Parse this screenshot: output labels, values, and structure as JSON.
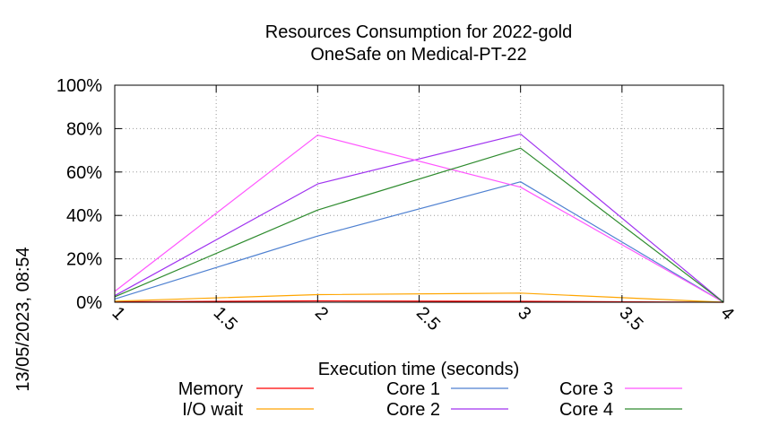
{
  "chart_data": {
    "type": "line",
    "title": "Resources Consumption for 2022-gold",
    "subtitle": "OneSafe on Medical-PT-22",
    "xlabel": "Execution time (seconds)",
    "ylabel": "",
    "side_label": "13/05/2023, 08:54",
    "xlim": [
      1,
      4
    ],
    "ylim": [
      0,
      100
    ],
    "x_ticks": [
      "1",
      "1.5",
      "2",
      "2.5",
      "3",
      "3.5",
      "4"
    ],
    "y_ticks": [
      "0%",
      "20%",
      "40%",
      "60%",
      "80%",
      "100%"
    ],
    "grid": true,
    "legend_position": "bottom",
    "x": [
      1,
      2,
      3,
      4
    ],
    "series": [
      {
        "name": "Memory",
        "color": "#ff0000",
        "values": [
          0.2,
          0.6,
          0.4,
          0
        ]
      },
      {
        "name": "I/O wait",
        "color": "#ffa500",
        "values": [
          0.5,
          3.5,
          4.2,
          0
        ]
      },
      {
        "name": "Core 1",
        "color": "#4f81d1",
        "values": [
          1.5,
          30.5,
          55.5,
          0
        ]
      },
      {
        "name": "Core 2",
        "color": "#a033f0",
        "values": [
          3,
          54.5,
          77.5,
          0
        ]
      },
      {
        "name": "Core 3",
        "color": "#ff55ff",
        "values": [
          5,
          77,
          53,
          0
        ]
      },
      {
        "name": "Core 4",
        "color": "#2e8b2e",
        "values": [
          2.5,
          42.5,
          71,
          0
        ]
      }
    ]
  }
}
